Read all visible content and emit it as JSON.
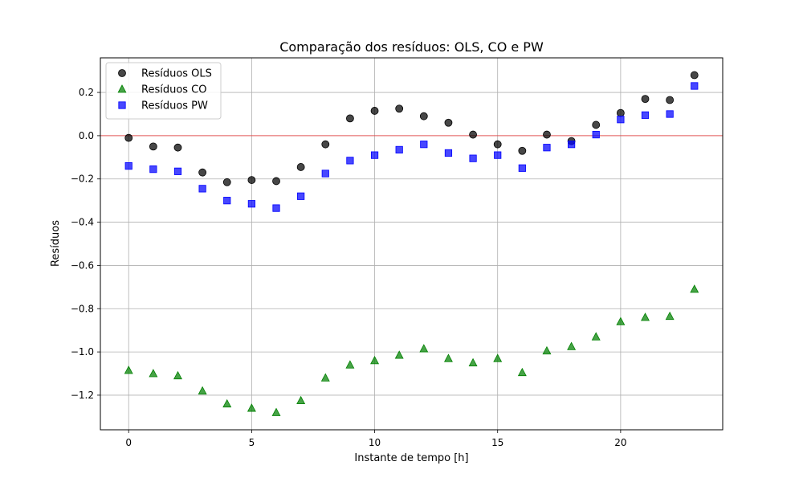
{
  "chart_data": {
    "type": "scatter",
    "title": "Comparação dos resíduos: OLS, CO e PW",
    "xlabel": "Instante de tempo [h]",
    "ylabel": "Resíduos",
    "xlim": [
      -1.15,
      24.15
    ],
    "ylim": [
      -1.36,
      0.36
    ],
    "xticks": [
      0,
      5,
      10,
      15,
      20
    ],
    "yticks": [
      0.2,
      0.0,
      -0.2,
      -0.4,
      -0.6,
      -0.8,
      -1.0,
      -1.2
    ],
    "ytick_labels": [
      "0.2",
      "0.0",
      "−0.2",
      "−0.4",
      "−0.6",
      "−0.8",
      "−1.0",
      "−1.2"
    ],
    "grid": true,
    "legend_position": "top-left",
    "reference_line": {
      "y": 0.0,
      "color": "#ff0000"
    },
    "x": [
      0,
      1,
      2,
      3,
      4,
      5,
      6,
      7,
      8,
      9,
      10,
      11,
      12,
      13,
      14,
      15,
      16,
      17,
      18,
      19,
      20,
      21,
      22,
      23
    ],
    "series": [
      {
        "name": "Resíduos OLS",
        "marker": "circle",
        "color": "#000000",
        "values": [
          -0.01,
          -0.05,
          -0.055,
          -0.17,
          -0.215,
          -0.205,
          -0.21,
          -0.145,
          -0.04,
          0.08,
          0.115,
          0.125,
          0.09,
          0.06,
          0.005,
          -0.04,
          -0.07,
          0.005,
          -0.025,
          0.05,
          0.105,
          0.17,
          0.165,
          0.28
        ]
      },
      {
        "name": "Resíduos CO",
        "marker": "triangle",
        "color": "#008000",
        "values": [
          -1.085,
          -1.1,
          -1.11,
          -1.18,
          -1.24,
          -1.26,
          -1.28,
          -1.225,
          -1.12,
          -1.06,
          -1.04,
          -1.015,
          -0.985,
          -1.03,
          -1.05,
          -1.03,
          -1.095,
          -0.995,
          -0.975,
          -0.93,
          -0.86,
          -0.84,
          -0.835,
          -0.71
        ]
      },
      {
        "name": "Resíduos PW",
        "marker": "square",
        "color": "#0000ff",
        "values": [
          -0.14,
          -0.155,
          -0.165,
          -0.245,
          -0.3,
          -0.315,
          -0.335,
          -0.28,
          -0.175,
          -0.115,
          -0.09,
          -0.065,
          -0.04,
          -0.08,
          -0.105,
          -0.09,
          -0.15,
          -0.055,
          -0.04,
          0.005,
          0.075,
          0.095,
          0.1,
          0.23
        ]
      }
    ]
  }
}
